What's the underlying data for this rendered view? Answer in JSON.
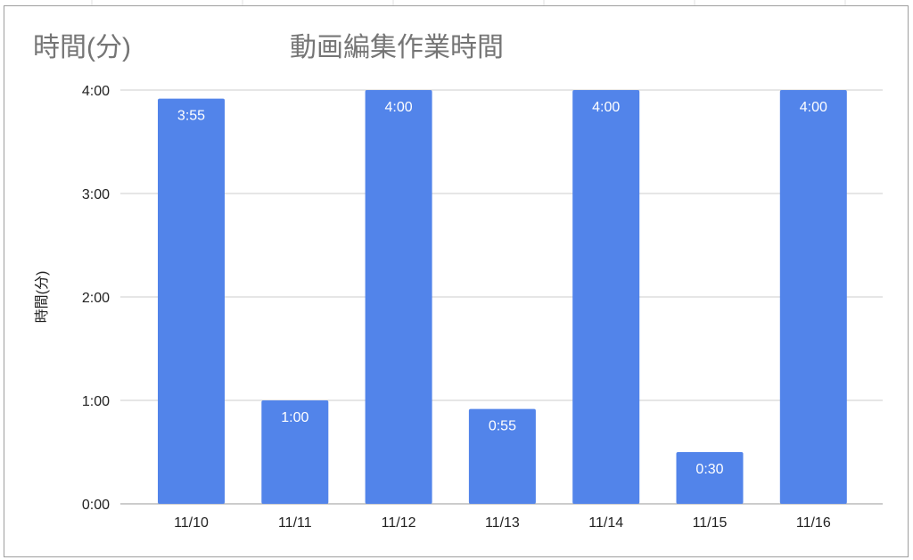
{
  "chart_data": {
    "type": "bar",
    "title": "動画編集作業時間",
    "corner_label": "時間(分)",
    "ylabel": "時間(分)",
    "xlabel": "",
    "categories": [
      "11/10",
      "11/11",
      "11/12",
      "11/13",
      "11/14",
      "11/15",
      "11/16"
    ],
    "values_minutes": [
      235,
      60,
      240,
      55,
      240,
      30,
      240
    ],
    "data_labels": [
      "3:55",
      "1:00",
      "4:00",
      "0:55",
      "4:00",
      "0:30",
      "4:00"
    ],
    "ylim_minutes": [
      0,
      240
    ],
    "yticks_minutes": [
      0,
      60,
      120,
      180,
      240
    ],
    "ytick_labels": [
      "0:00",
      "1:00",
      "2:00",
      "3:00",
      "4:00"
    ],
    "grid": true,
    "legend": "none",
    "bar_color": "#5284ea"
  }
}
